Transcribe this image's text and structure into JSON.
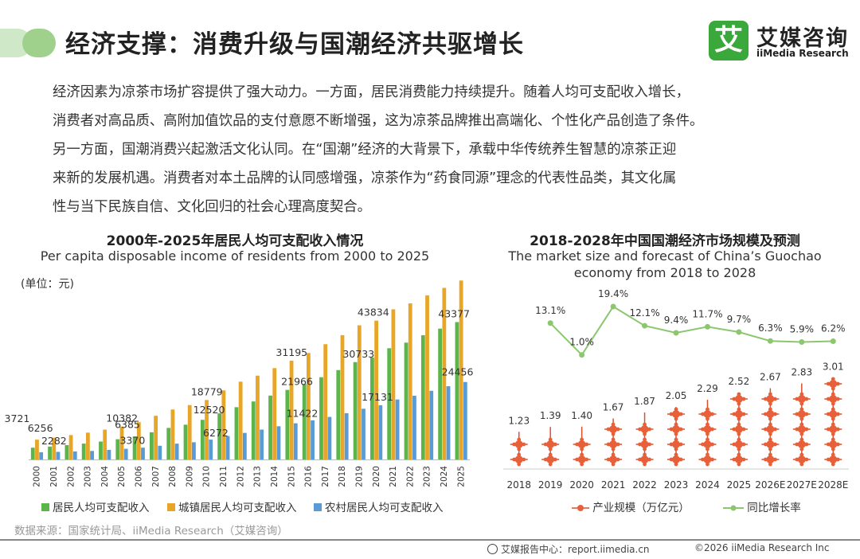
{
  "header": {
    "title": "经济支撑：消费升级与国潮经济共驱增长",
    "logo_mark": "艾",
    "logo_cn": "艾媒咨询",
    "logo_en": "iiMedia Research"
  },
  "paragraph": [
    "经济因素为凉茶市场扩容提供了强大动力。一方面，居民消费能力持续提升。随着人均可支配收入增长，",
    "消费者对高品质、高附加值饮品的支付意愿不断增强，这为凉茶品牌推出高端化、个性化产品创造了条件。",
    "另一方面，国潮消费兴起激活文化认同。在“国潮”经济的大背景下，承载中华传统养生智慧的凉茶正迎",
    "来新的发展机遇。消费者对本土品牌的认同感增强，凉茶作为“药食同源”理念的代表性品类，其文化属",
    "性与当下民族自信、文化回归的社会心理高度契合。"
  ],
  "chart_data": [
    {
      "type": "bar",
      "title": "2000年-2025年居民人均可支配收入情况",
      "subtitle": "Per capita disposable income of residents from 2000 to 2025",
      "unit": "(单位：元)",
      "categories": [
        "2000",
        "2001",
        "2002",
        "2003",
        "2004",
        "2005",
        "2006",
        "2007",
        "2008",
        "2009",
        "2010",
        "2011",
        "2012",
        "2013",
        "2014",
        "2015",
        "2016",
        "2017",
        "2018",
        "2019",
        "2020",
        "2021",
        "2022",
        "2023",
        "2024",
        "2025"
      ],
      "series": [
        {
          "name": "居民人均可支配收入",
          "color": "#5bb54a",
          "values": [
            3721,
            4070,
            4532,
            5007,
            5661,
            6385,
            7229,
            8584,
            9957,
            10977,
            12520,
            14551,
            16510,
            18311,
            20167,
            21966,
            23821,
            25974,
            28228,
            30733,
            32189,
            35128,
            36883,
            39218,
            41314,
            43377
          ],
          "labeled": [
            0,
            5,
            10,
            15,
            19,
            25
          ]
        },
        {
          "name": "城镇居民人均可支配收入",
          "color": "#e8a628",
          "values": [
            6256,
            6860,
            7703,
            8472,
            9422,
            10382,
            11759,
            13786,
            15781,
            17175,
            18779,
            21810,
            24565,
            26467,
            28844,
            31195,
            33616,
            36396,
            39251,
            42359,
            43834,
            47412,
            49283,
            51821,
            54188,
            56502
          ],
          "labeled": [
            0,
            5,
            10,
            15,
            20,
            25
          ]
        },
        {
          "name": "农村居民人均可支配收入",
          "color": "#5b9bd5",
          "values": [
            2282,
            2407,
            2529,
            2690,
            3027,
            3370,
            3731,
            4327,
            4999,
            5435,
            6272,
            7394,
            8389,
            9430,
            10489,
            11422,
            12363,
            13432,
            14617,
            16021,
            17131,
            18931,
            20133,
            21691,
            23119,
            24456
          ],
          "labeled": [
            0,
            5,
            10,
            15,
            20,
            25
          ]
        }
      ],
      "ylim": [
        0,
        60000
      ]
    },
    {
      "type": "line",
      "title": "2018-2028年中国国潮经济市场规模及预测",
      "subtitle_lines": [
        "The market size and forecast of China’s Guochao",
        "economy from 2018 to 2028"
      ],
      "categories": [
        "2018",
        "2019",
        "2020",
        "2021",
        "2022",
        "2023",
        "2024",
        "2025",
        "2026E",
        "2027E",
        "2028E"
      ],
      "bar_series": {
        "name": "产业规模（万亿元）",
        "color": "#d9512c",
        "values": [
          1.23,
          1.39,
          1.4,
          1.67,
          1.87,
          2.05,
          2.29,
          2.52,
          2.67,
          2.83,
          3.01
        ],
        "labels": [
          "1.23",
          "1.39",
          "1.40",
          "1.67",
          "1.87",
          "2.05",
          "2.29",
          "2.52",
          "2.67",
          "2.83",
          "3.01"
        ]
      },
      "line_series": {
        "name": "同比增长率",
        "color": "#8cc66f",
        "values": [
          null,
          13.1,
          1.0,
          19.4,
          12.1,
          9.4,
          11.7,
          9.7,
          6.3,
          5.9,
          6.2
        ],
        "labels": [
          "",
          "13.1%",
          "1.0%",
          "19.4%",
          "12.1%",
          "9.4%",
          "11.7%",
          "9.7%",
          "6.3%",
          "5.9%",
          "6.2%"
        ]
      }
    }
  ],
  "footer": {
    "source": "数据来源：国家统计局、iiMedia Research（艾媒咨询）",
    "center": "艾媒报告中心：report.iimedia.cn",
    "copyright": "©2026  iiMedia Research  Inc"
  }
}
